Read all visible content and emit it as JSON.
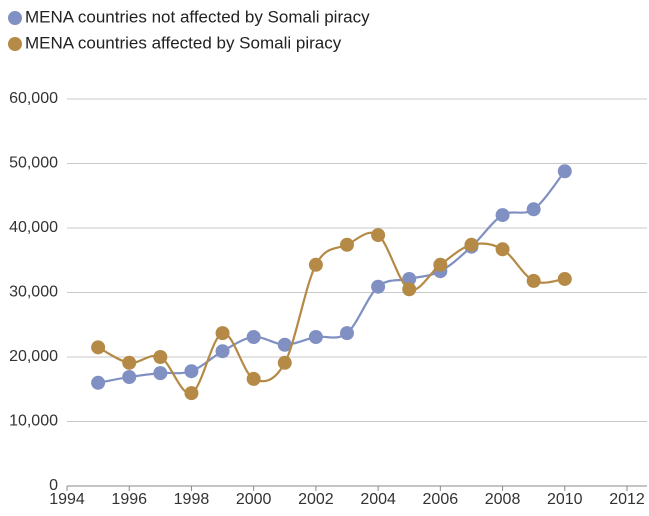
{
  "chart_data": {
    "type": "line",
    "x": [
      1995,
      1996,
      1997,
      1998,
      1999,
      2000,
      2001,
      2002,
      2003,
      2004,
      2005,
      2006,
      2007,
      2008,
      2009,
      2010
    ],
    "series": [
      {
        "name": "MENA countries not affected by Somali piracy",
        "color": "#8090c2",
        "values": [
          16000,
          16900,
          17500,
          17800,
          20900,
          23100,
          21900,
          23100,
          23700,
          30900,
          32100,
          33300,
          37100,
          42000,
          42900,
          48800
        ]
      },
      {
        "name": "MENA countries affected by Somali piracy",
        "color": "#b58a46",
        "values": [
          21500,
          19100,
          20000,
          14400,
          23700,
          16600,
          19100,
          34300,
          37400,
          38900,
          30500,
          34300,
          37400,
          36700,
          31800,
          32100
        ]
      }
    ],
    "xlim": [
      1994,
      2012
    ],
    "xticks": [
      1994,
      1996,
      1998,
      2000,
      2002,
      2004,
      2006,
      2008,
      2010,
      2012
    ],
    "ylim": [
      0,
      60000
    ],
    "yticks": [
      0,
      {
        "value": 10000,
        "label": "10,000"
      },
      {
        "value": 20000,
        "label": "20,000"
      },
      {
        "value": 30000,
        "label": "30,000"
      },
      {
        "value": 40000,
        "label": "40,000"
      },
      {
        "value": 50000,
        "label": "50,000"
      },
      {
        "value": 60000,
        "label": "60,000"
      }
    ],
    "grid": true,
    "legend": "top-left"
  }
}
